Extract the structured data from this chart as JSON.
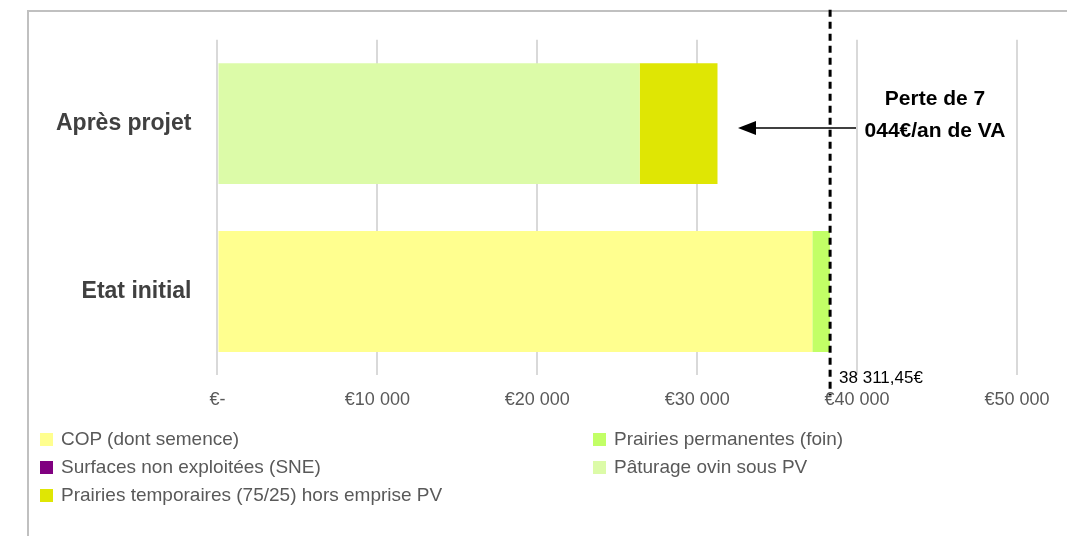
{
  "chart_data": {
    "type": "bar",
    "orientation": "horizontal",
    "stacked": true,
    "categories": [
      "Après projet",
      "Etat initial"
    ],
    "series": [
      {
        "name": "COP (dont semence)",
        "color": "#ffff8f",
        "values": [
          0,
          37200
        ]
      },
      {
        "name": "Prairies permanentes (foin)",
        "color": "#c2ff66",
        "values": [
          0,
          1100
        ]
      },
      {
        "name": "Surfaces non exploitées (SNE)",
        "color": "#800080",
        "values": [
          0,
          0
        ]
      },
      {
        "name": "Pâturage ovin sous PV",
        "color": "#dcfba8",
        "values": [
          26400,
          0
        ]
      },
      {
        "name": "Prairies temporaires (75/25) hors emprise PV",
        "color": "#dfe604",
        "values": [
          4870,
          0
        ]
      }
    ],
    "xlim": [
      0,
      50000
    ],
    "xticks": [
      {
        "value": 0,
        "label": "€-"
      },
      {
        "value": 10000,
        "label": "€10 000"
      },
      {
        "value": 20000,
        "label": "€20 000"
      },
      {
        "value": 30000,
        "label": "€30 000"
      },
      {
        "value": 40000,
        "label": "€40 000"
      },
      {
        "value": 50000,
        "label": "€50 000"
      }
    ],
    "grid": "x",
    "legend": "bottom",
    "ref_lines": [
      {
        "axis": "x",
        "value": 38311.45,
        "label": "38 311,45€",
        "color": "#000000",
        "line_style": "dashed"
      }
    ],
    "annotations": [
      "Perte de 7 044€/an de VA"
    ]
  }
}
